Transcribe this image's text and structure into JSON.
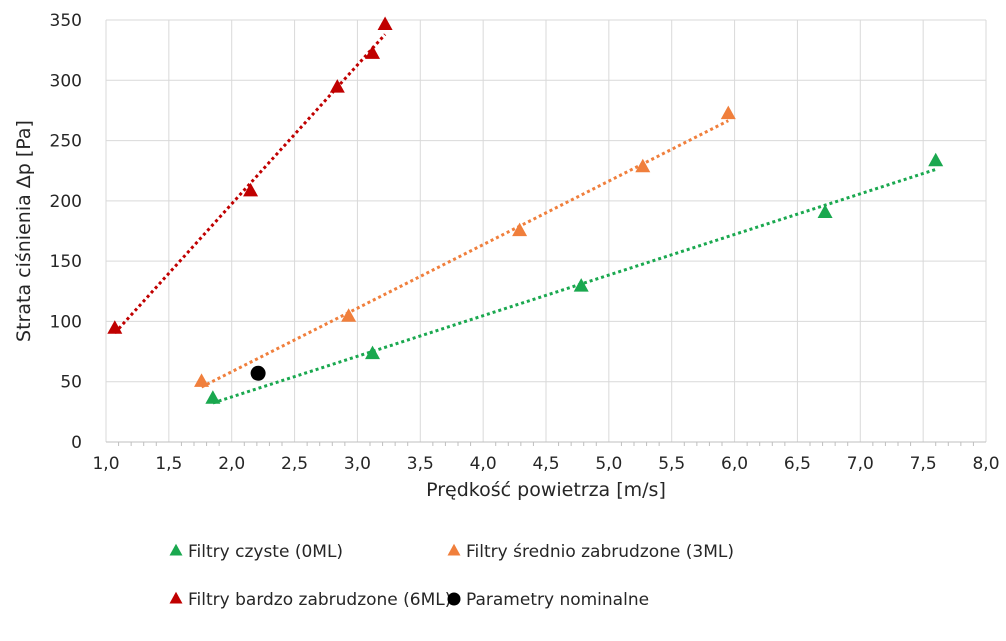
{
  "chart_data": {
    "type": "scatter",
    "title": "",
    "xlabel": "Prędkość powietrza [m/s]",
    "ylabel": "Strata ciśnienia Δp [Pa]",
    "xlim": [
      1.0,
      8.0
    ],
    "ylim": [
      0,
      350
    ],
    "x_ticks": [
      "1,0",
      "1,5",
      "2,0",
      "2,5",
      "3,0",
      "3,5",
      "4,0",
      "4,5",
      "5,0",
      "5,5",
      "6,0",
      "6,5",
      "7,0",
      "7,5",
      "8,0"
    ],
    "x_tick_values": [
      1.0,
      1.5,
      2.0,
      2.5,
      3.0,
      3.5,
      4.0,
      4.5,
      5.0,
      5.5,
      6.0,
      6.5,
      7.0,
      7.5,
      8.0
    ],
    "y_ticks": [
      "0",
      "50",
      "100",
      "150",
      "200",
      "250",
      "300",
      "350"
    ],
    "y_tick_values": [
      0,
      50,
      100,
      150,
      200,
      250,
      300,
      350
    ],
    "grid": "vertical and horizontal major gridlines",
    "legend_position": "bottom",
    "series": [
      {
        "name": "Filtry czyste (0ML)",
        "marker": "triangle",
        "color": "#1aa84f",
        "trendline": "linear dotted",
        "points": [
          [
            1.85,
            36
          ],
          [
            3.12,
            73
          ],
          [
            4.78,
            129
          ],
          [
            6.72,
            190
          ],
          [
            7.6,
            233
          ]
        ]
      },
      {
        "name": "Filtry średnio zabrudzone (3ML)",
        "marker": "triangle",
        "color": "#f07f3c",
        "trendline": "linear dotted",
        "points": [
          [
            1.76,
            50
          ],
          [
            2.93,
            104
          ],
          [
            4.29,
            175
          ],
          [
            5.27,
            228
          ],
          [
            5.95,
            272
          ]
        ]
      },
      {
        "name": "Filtry bardzo zabrudzone (6ML)",
        "marker": "triangle",
        "color": "#c00000",
        "trendline": "linear dotted",
        "points": [
          [
            1.07,
            94
          ],
          [
            2.15,
            208
          ],
          [
            2.84,
            294
          ],
          [
            3.12,
            322
          ],
          [
            3.22,
            346
          ]
        ]
      },
      {
        "name": "Parametry nominalne",
        "marker": "circle",
        "color": "#000000",
        "trendline": "none",
        "points": [
          [
            2.21,
            57
          ]
        ]
      }
    ]
  }
}
